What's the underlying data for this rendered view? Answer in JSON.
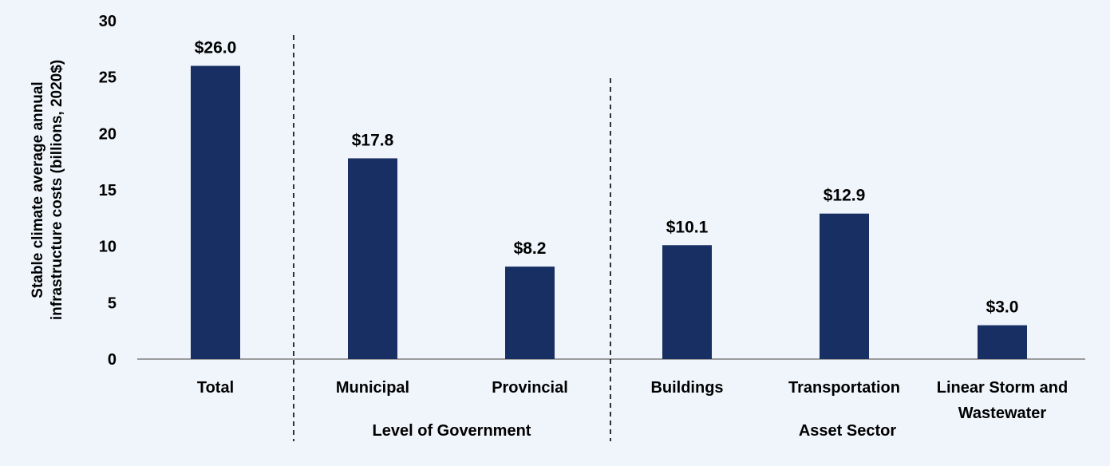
{
  "chart_data": {
    "type": "bar",
    "title": "",
    "ylabel_lines": [
      "Stable climate average annual",
      "infrastructure costs (billions, 2020$)"
    ],
    "xlabel": "",
    "ylim": [
      0,
      30
    ],
    "yticks": [
      0,
      5,
      10,
      15,
      20,
      25,
      30
    ],
    "categories": [
      "Total",
      "Municipal",
      "Provincial",
      "Buildings",
      "Transportation",
      "Linear Storm and Wastewater"
    ],
    "category_label_lines": [
      [
        "Total"
      ],
      [
        "Municipal"
      ],
      [
        "Provincial"
      ],
      [
        "Buildings"
      ],
      [
        "Transportation"
      ],
      [
        "Linear Storm and",
        "Wastewater"
      ]
    ],
    "values": [
      26.0,
      17.8,
      8.2,
      10.1,
      12.9,
      3.0
    ],
    "data_labels": [
      "$26.0",
      "$17.8",
      "$8.2",
      "$10.1",
      "$12.9",
      "$3.0"
    ],
    "groups": [
      {
        "label": "Level of Government",
        "categories": [
          "Municipal",
          "Provincial"
        ]
      },
      {
        "label": "Asset Sector",
        "categories": [
          "Buildings",
          "Transportation",
          "Linear Storm and Wastewater"
        ]
      }
    ],
    "bar_color": "#172f63",
    "grid": false,
    "legend": "none"
  }
}
